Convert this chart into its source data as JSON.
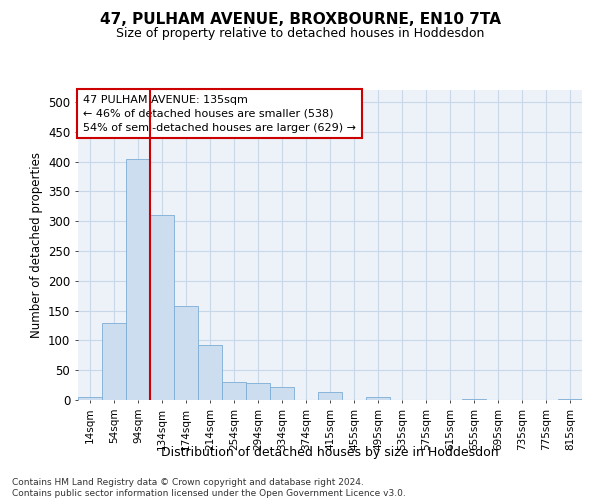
{
  "title": "47, PULHAM AVENUE, BROXBOURNE, EN10 7TA",
  "subtitle": "Size of property relative to detached houses in Hoddesdon",
  "xlabel": "Distribution of detached houses by size in Hoddesdon",
  "ylabel": "Number of detached properties",
  "bar_labels": [
    "14sqm",
    "54sqm",
    "94sqm",
    "134sqm",
    "174sqm",
    "214sqm",
    "254sqm",
    "294sqm",
    "334sqm",
    "374sqm",
    "415sqm",
    "455sqm",
    "495sqm",
    "535sqm",
    "575sqm",
    "615sqm",
    "655sqm",
    "695sqm",
    "735sqm",
    "775sqm",
    "815sqm"
  ],
  "bar_values": [
    5,
    130,
    405,
    310,
    157,
    92,
    30,
    28,
    22,
    0,
    14,
    0,
    5,
    0,
    0,
    0,
    2,
    0,
    0,
    0,
    1
  ],
  "bar_color": "#ccddf0",
  "bar_edge_color": "#7dadd4",
  "vline_x_index": 3,
  "vline_color": "#cc0000",
  "annotation_lines": [
    "47 PULHAM AVENUE: 135sqm",
    "← 46% of detached houses are smaller (538)",
    "54% of semi-detached houses are larger (629) →"
  ],
  "annotation_box_color": "#cc0000",
  "ylim": [
    0,
    520
  ],
  "yticks": [
    0,
    50,
    100,
    150,
    200,
    250,
    300,
    350,
    400,
    450,
    500
  ],
  "footnote": "Contains HM Land Registry data © Crown copyright and database right 2024.\nContains public sector information licensed under the Open Government Licence v3.0.",
  "grid_color": "#c8d8e8",
  "background_color": "#edf2f8"
}
